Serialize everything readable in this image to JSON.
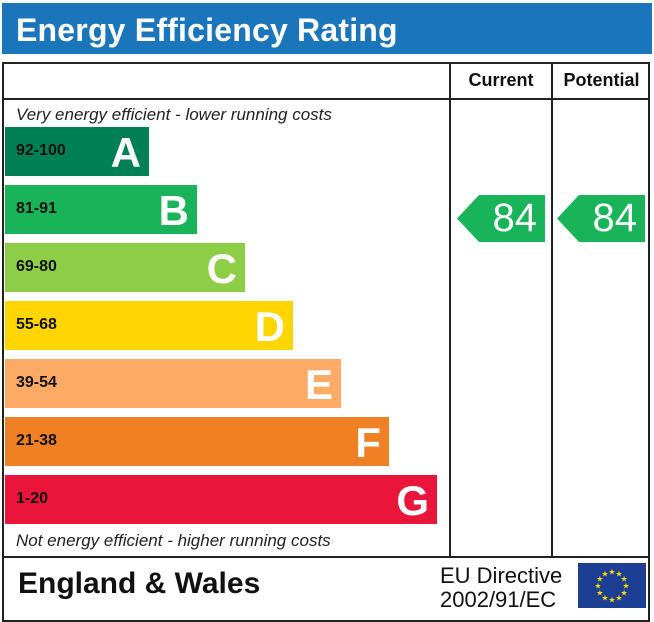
{
  "title": "Energy Efficiency Rating",
  "columns": {
    "current": "Current",
    "potential": "Potential"
  },
  "top_caption": "Very energy efficient - lower running costs",
  "bottom_caption": "Not energy efficient - higher running costs",
  "chart_data": {
    "type": "bar",
    "bands": [
      {
        "range": "92-100",
        "letter": "A",
        "color": "#008054"
      },
      {
        "range": "81-91",
        "letter": "B",
        "color": "#19b459"
      },
      {
        "range": "69-80",
        "letter": "C",
        "color": "#8dce46"
      },
      {
        "range": "55-68",
        "letter": "D",
        "color": "#ffd500"
      },
      {
        "range": "39-54",
        "letter": "E",
        "color": "#fcaa65"
      },
      {
        "range": "21-38",
        "letter": "F",
        "color": "#ef8023"
      },
      {
        "range": "1-20",
        "letter": "G",
        "color": "#e9153b"
      }
    ],
    "current": {
      "value": 84,
      "band": "B",
      "color": "#19b459"
    },
    "potential": {
      "value": 84,
      "band": "B",
      "color": "#19b459"
    }
  },
  "footer": {
    "region": "England & Wales",
    "directive_line1": "EU Directive",
    "directive_line2": "2002/91/EC"
  },
  "icons": {
    "flag": "eu-flag-icon"
  }
}
